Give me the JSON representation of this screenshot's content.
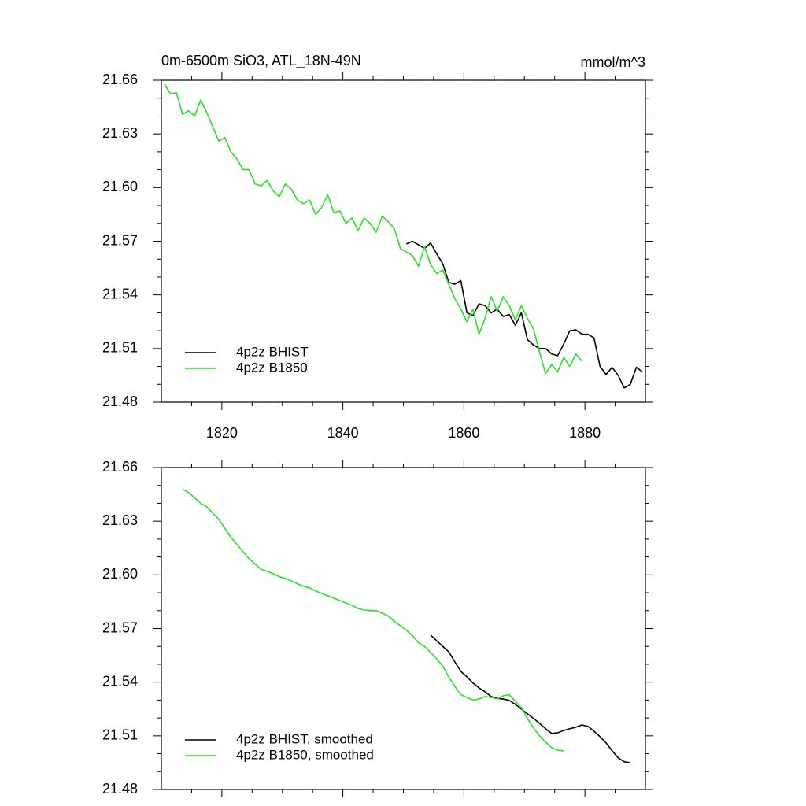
{
  "chart_data": [
    {
      "type": "line",
      "title": "0m-6500m SiO3, ATL_18N-49N",
      "subtitle": "mmol/m^3",
      "xlim": [
        1810,
        1890
      ],
      "xticks": [
        1820,
        1840,
        1860,
        1880
      ],
      "ylim": [
        21.48,
        21.66
      ],
      "yticks": [
        21.48,
        21.51,
        21.54,
        21.57,
        {
          "value": 21.6,
          "label": "21.60"
        },
        21.63,
        21.66
      ],
      "legend": "lower left",
      "series": [
        {
          "name": "4p2z BHIST",
          "color": "#000000",
          "x": [
            1850.5,
            1851.5,
            1852.5,
            1853.5,
            1854.5,
            1855.5,
            1856.5,
            1857.5,
            1858.5,
            1859.5,
            1860.5,
            1861.5,
            1862.5,
            1863.5,
            1864.5,
            1865.5,
            1866.5,
            1867.5,
            1868.5,
            1869.5,
            1870.5,
            1871.5,
            1872.5,
            1873.5,
            1874.5,
            1875.5,
            1876.5,
            1877.5,
            1878.5,
            1879.5,
            1880.5,
            1881.5,
            1882.5,
            1883.5,
            1884.5,
            1885.5,
            1886.5,
            1887.5,
            1888.5,
            1889.5
          ],
          "values": [
            21.5685,
            21.57,
            21.568,
            21.566,
            21.569,
            21.563,
            21.5575,
            21.547,
            21.546,
            21.548,
            21.53,
            21.5285,
            21.535,
            21.534,
            21.53,
            21.532,
            21.528,
            21.529,
            21.523,
            21.53,
            21.515,
            21.512,
            21.51,
            21.51,
            21.507,
            21.506,
            21.5126,
            21.52,
            21.5205,
            21.518,
            21.518,
            21.516,
            21.5,
            21.4955,
            21.4995,
            21.495,
            21.488,
            21.49,
            21.4995,
            21.497
          ]
        },
        {
          "name": "4p2z B1850",
          "color": "#22e622",
          "x": [
            1810.5,
            1811.5,
            1812.5,
            1813.5,
            1814.5,
            1815.5,
            1816.5,
            1817.5,
            1818.5,
            1819.5,
            1820.5,
            1821.5,
            1822.5,
            1823.5,
            1824.5,
            1825.5,
            1826.5,
            1827.5,
            1828.5,
            1829.5,
            1830.5,
            1831.5,
            1832.5,
            1833.5,
            1834.5,
            1835.5,
            1836.5,
            1837.5,
            1838.5,
            1839.5,
            1840.5,
            1841.5,
            1842.5,
            1843.5,
            1844.5,
            1845.5,
            1846.5,
            1847.5,
            1848.5,
            1849.5,
            1850.5,
            1851.5,
            1852.5,
            1853.5,
            1854.5,
            1855.5,
            1856.5,
            1857.5,
            1858.5,
            1859.5,
            1860.5,
            1861.5,
            1862.5,
            1863.5,
            1864.5,
            1865.5,
            1866.5,
            1867.5,
            1868.5,
            1869.5,
            1870.5,
            1871.5,
            1872.5,
            1873.5,
            1874.5,
            1875.5,
            1876.5,
            1877.5,
            1878.5,
            1879.5
          ],
          "values": [
            21.658,
            21.6525,
            21.653,
            21.641,
            21.643,
            21.64,
            21.649,
            21.642,
            21.634,
            21.626,
            21.628,
            21.62,
            21.616,
            21.61,
            21.61,
            21.602,
            21.601,
            21.604,
            21.598,
            21.595,
            21.602,
            21.599,
            21.593,
            21.591,
            21.593,
            21.585,
            21.589,
            21.596,
            21.586,
            21.587,
            21.58,
            21.583,
            21.576,
            21.583,
            21.58,
            21.575,
            21.584,
            21.581,
            21.577,
            21.566,
            21.564,
            21.562,
            21.556,
            21.567,
            21.557,
            21.552,
            21.554,
            21.546,
            21.538,
            21.532,
            21.525,
            21.532,
            21.518,
            21.527,
            21.539,
            21.531,
            21.539,
            21.534,
            21.526,
            21.534,
            21.527,
            21.521,
            21.508,
            21.496,
            21.501,
            21.497,
            21.505,
            21.5,
            21.507,
            21.503
          ]
        }
      ]
    },
    {
      "type": "line",
      "xlim": [
        1810,
        1890
      ],
      "xticks": [
        1820,
        1840,
        1860,
        1880
      ],
      "ylim": [
        21.48,
        21.66
      ],
      "yticks": [
        21.48,
        21.51,
        21.54,
        21.57,
        {
          "value": 21.6,
          "label": "21.60"
        },
        21.63,
        21.66
      ],
      "legend": "lower left",
      "series": [
        {
          "name": "4p2z BHIST, smoothed",
          "color": "#000000",
          "x": [
            1854.5,
            1855.5,
            1856.5,
            1857.5,
            1858.5,
            1859.5,
            1860.5,
            1861.5,
            1862.5,
            1863.5,
            1864.5,
            1865.5,
            1866.5,
            1867.5,
            1868.5,
            1869.5,
            1870.5,
            1871.5,
            1872.5,
            1873.5,
            1874.5,
            1875.5,
            1876.5,
            1877.5,
            1878.5,
            1879.5,
            1880.5,
            1881.5,
            1882.5,
            1883.5,
            1884.5,
            1885.5,
            1886.5,
            1887.5
          ],
          "values": [
            21.5663,
            21.5632,
            21.56,
            21.557,
            21.5513,
            21.546,
            21.543,
            21.5395,
            21.5368,
            21.5346,
            21.532,
            21.531,
            21.5306,
            21.5298,
            21.5276,
            21.525,
            21.5223,
            21.5197,
            21.517,
            21.514,
            21.5113,
            21.5117,
            21.513,
            21.514,
            21.5148,
            21.5161,
            21.5153,
            21.5126,
            21.5095,
            21.506,
            21.5016,
            21.4977,
            21.4955,
            21.495
          ]
        },
        {
          "name": "4p2z B1850, smoothed",
          "color": "#22e622",
          "x": [
            1813.5,
            1814.5,
            1815.5,
            1816.5,
            1817.5,
            1818.5,
            1819.5,
            1820.5,
            1821.5,
            1822.5,
            1823.5,
            1824.5,
            1825.5,
            1826.5,
            1827.5,
            1828.5,
            1829.5,
            1830.5,
            1831.5,
            1832.5,
            1833.5,
            1834.5,
            1835.5,
            1836.5,
            1837.5,
            1838.5,
            1839.5,
            1840.5,
            1841.5,
            1842.5,
            1843.5,
            1844.5,
            1845.5,
            1846.5,
            1847.5,
            1848.5,
            1849.5,
            1850.5,
            1851.5,
            1852.5,
            1853.5,
            1854.5,
            1855.5,
            1856.5,
            1857.5,
            1858.5,
            1859.5,
            1860.5,
            1861.5,
            1862.5,
            1863.5,
            1864.5,
            1865.5,
            1866.5,
            1867.5,
            1868.5,
            1869.5,
            1870.5,
            1871.5,
            1872.5,
            1873.5,
            1874.5,
            1875.5,
            1876.5
          ],
          "values": [
            21.648,
            21.646,
            21.643,
            21.64,
            21.638,
            21.6345,
            21.631,
            21.626,
            21.621,
            21.617,
            21.613,
            21.609,
            21.606,
            21.603,
            21.602,
            21.6006,
            21.599,
            21.598,
            21.5966,
            21.595,
            21.5936,
            21.5927,
            21.591,
            21.5896,
            21.5883,
            21.587,
            21.5856,
            21.5843,
            21.583,
            21.5812,
            21.5804,
            21.58,
            21.58,
            21.5786,
            21.577,
            21.574,
            21.5716,
            21.569,
            21.566,
            21.562,
            21.56,
            21.5566,
            21.553,
            21.549,
            21.543,
            21.5377,
            21.533,
            21.5315,
            21.53,
            21.5306,
            21.532,
            21.5315,
            21.5306,
            21.5324,
            21.533,
            21.5293,
            21.5258,
            21.5197,
            21.5144,
            21.51,
            21.5065,
            21.5034,
            21.502,
            21.5016
          ]
        }
      ]
    }
  ]
}
